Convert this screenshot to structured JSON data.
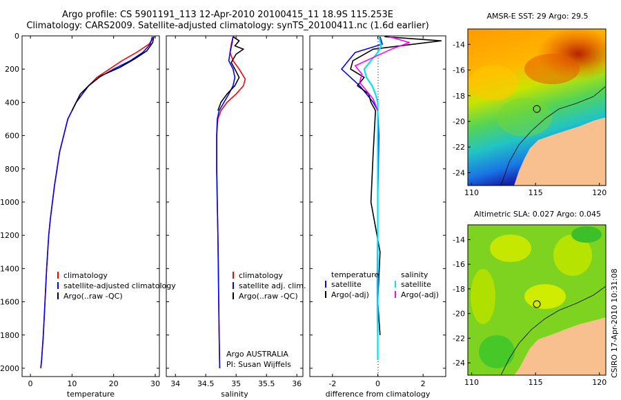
{
  "title_line1": "Argo profile: CS 5901191_113 12-Apr-2010 20100415_11 18.9S 115.253E",
  "title_line2": "Climatology: CARS2009. Satellite-adjusted climatology: synTS_20100411.nc (1.6d earlier)",
  "footer": "CSIRO 17-Apr-2010 10:31:08",
  "colors": {
    "climatology": "#ff0000",
    "satellite": "#0000ff",
    "argo": "#000000",
    "cyan": "#00e5ee",
    "magenta": "#ff00ff"
  },
  "chart_data": [
    {
      "type": "line",
      "id": "temperature",
      "xlabel": "temperature",
      "xlim": [
        -2,
        31
      ],
      "xticks": [
        0,
        10,
        20,
        30
      ],
      "ylim": [
        0,
        2050
      ],
      "yticks": [
        0,
        200,
        400,
        600,
        800,
        1000,
        1200,
        1400,
        1600,
        1800,
        2000
      ],
      "yreversed": true,
      "legend": "lower-left",
      "legend_entries": [
        "climatology",
        "satellite-adjusted climatology",
        "Argo(..raw -QC)"
      ],
      "series": [
        {
          "name": "climatology",
          "color": "red",
          "x": [
            29.8,
            28.5,
            25.5,
            22,
            19,
            16,
            14,
            12.5,
            11,
            10,
            9,
            8,
            7,
            6.4,
            5.8,
            5.3,
            4.8,
            4.4,
            3.9,
            3.5,
            3.1,
            2.7,
            2.5
          ],
          "y": [
            5,
            50,
            100,
            150,
            200,
            250,
            300,
            350,
            400,
            450,
            500,
            600,
            700,
            800,
            900,
            1000,
            1100,
            1200,
            1400,
            1600,
            1800,
            1950,
            2000
          ]
        },
        {
          "name": "satellite-adjusted climatology",
          "color": "blue",
          "x": [
            29.3,
            28.8,
            27,
            24,
            20,
            16.5,
            14,
            12.5,
            11,
            10,
            9,
            8,
            7,
            6.4,
            5.8,
            5.3,
            4.8,
            4.4,
            3.9,
            3.5,
            3.1,
            2.7,
            2.5
          ],
          "y": [
            5,
            50,
            100,
            150,
            200,
            250,
            300,
            350,
            400,
            450,
            500,
            600,
            700,
            800,
            900,
            1000,
            1100,
            1200,
            1400,
            1600,
            1800,
            1950,
            2000
          ]
        },
        {
          "name": "Argo(..raw -QC)",
          "color": "black",
          "x": [
            29.6,
            29.4,
            28,
            25,
            21.5,
            17,
            14,
            12,
            11,
            10
          ],
          "y": [
            5,
            40,
            90,
            140,
            190,
            240,
            300,
            350,
            400,
            450
          ]
        }
      ],
      "annotations": []
    },
    {
      "type": "line",
      "id": "salinity",
      "xlabel": "salinity",
      "xlim": [
        33.85,
        36.1
      ],
      "xticks": [
        34,
        34.5,
        35,
        35.5,
        36
      ],
      "ylim": [
        0,
        2050
      ],
      "yreversed": true,
      "legend": "lower-right",
      "legend_entries": [
        "climatology",
        "satellite adj. clim.",
        "Argo(..raw -QC)"
      ],
      "series": [
        {
          "name": "climatology",
          "color": "red",
          "x": [
            34.95,
            34.92,
            34.9,
            34.95,
            35.05,
            35.15,
            35.12,
            35.0,
            34.85,
            34.75,
            34.7,
            34.68,
            34.68,
            34.69,
            34.7,
            34.71,
            34.72,
            34.73
          ],
          "y": [
            5,
            50,
            100,
            150,
            200,
            260,
            300,
            350,
            400,
            450,
            500,
            600,
            800,
            1000,
            1200,
            1500,
            1800,
            2000
          ]
        },
        {
          "name": "satellite adj. clim.",
          "color": "blue",
          "x": [
            34.95,
            34.93,
            34.9,
            34.88,
            34.95,
            34.98,
            34.95,
            34.88,
            34.8,
            34.72,
            34.69,
            34.68,
            34.68,
            34.69,
            34.7,
            34.71,
            34.72,
            34.73
          ],
          "y": [
            5,
            50,
            100,
            150,
            200,
            250,
            300,
            350,
            400,
            450,
            500,
            600,
            800,
            1000,
            1200,
            1500,
            1800,
            2000
          ]
        },
        {
          "name": "Argo(..raw -QC)",
          "color": "black",
          "x": [
            34.95,
            35.05,
            34.98,
            35.12,
            35.0,
            34.92,
            34.98,
            35.05,
            34.98,
            34.85,
            34.75,
            34.7
          ],
          "y": [
            5,
            30,
            60,
            80,
            110,
            160,
            200,
            250,
            300,
            350,
            400,
            450
          ]
        }
      ],
      "annotations": [
        "Argo AUSTRALIA",
        "PI: Susan Wijffels"
      ]
    },
    {
      "type": "line",
      "id": "difference",
      "xlabel": "difference from climatology",
      "xlim": [
        -3,
        3
      ],
      "xticks": [
        -2,
        0,
        2
      ],
      "ylim": [
        0,
        2050
      ],
      "yreversed": true,
      "legend": "lower",
      "legend_headers": [
        "temperature",
        "salinity"
      ],
      "legend_entries": [
        "satellite",
        "Argo(-adj)",
        "satellite",
        "Argo(-adj)"
      ],
      "series": [
        {
          "name": "temperature satellite",
          "color": "blue",
          "x": [
            0.1,
            0.2,
            -1.0,
            -1.3,
            -1.6,
            -1.2,
            -0.8,
            -0.5,
            -0.2,
            0,
            0.05,
            0.0,
            -0.02,
            0.0
          ],
          "y": [
            5,
            50,
            100,
            150,
            200,
            250,
            300,
            350,
            400,
            450,
            600,
            1000,
            1500,
            1950
          ]
        },
        {
          "name": "temperature Argo(-adj)",
          "color": "black",
          "x": [
            0.3,
            2.8,
            -0.2,
            -1.1,
            -1.2,
            -0.6,
            -0.9,
            -0.4,
            -0.3,
            -0.1,
            -0.2,
            -0.3,
            0.1,
            0.0,
            0.1
          ],
          "y": [
            5,
            30,
            80,
            150,
            200,
            250,
            300,
            350,
            400,
            450,
            700,
            1000,
            1300,
            1600,
            1800
          ]
        },
        {
          "name": "salinity satellite",
          "color": "cyan",
          "x": [
            0.05,
            0.15,
            0.0,
            -0.3,
            -0.6,
            -0.5,
            -0.25,
            -0.1,
            0.0,
            0.0
          ],
          "y": [
            5,
            60,
            100,
            150,
            200,
            250,
            300,
            350,
            400,
            1950
          ]
        },
        {
          "name": "salinity Argo(-adj)",
          "color": "magenta",
          "x": [
            0.5,
            1.4,
            0.6,
            -0.2,
            -1.0,
            -0.7,
            -0.8,
            -0.5,
            -0.2,
            0.0
          ],
          "y": [
            5,
            40,
            80,
            130,
            180,
            230,
            280,
            330,
            380,
            450
          ]
        }
      ]
    },
    {
      "type": "heatmap",
      "id": "sst-map",
      "title": "AMSR-E SST: 29 Argo: 29.5",
      "xlim": [
        109.7,
        120.5
      ],
      "ylim": [
        -25,
        -12.8
      ],
      "xticks": [
        110,
        115,
        120
      ],
      "yticks": [
        -14,
        -16,
        -18,
        -20,
        -22,
        -24
      ],
      "marker": {
        "lon": 115.253,
        "lat": -18.9
      }
    },
    {
      "type": "heatmap",
      "id": "sla-map",
      "title": "Altimetric SLA: 0.027 Argo: 0.045",
      "xlim": [
        109.7,
        120.5
      ],
      "ylim": [
        -25,
        -12.8
      ],
      "xticks": [
        110,
        115,
        120
      ],
      "yticks": [
        -14,
        -16,
        -18,
        -20,
        -22,
        -24
      ],
      "marker": {
        "lon": 115.253,
        "lat": -18.9
      }
    }
  ]
}
